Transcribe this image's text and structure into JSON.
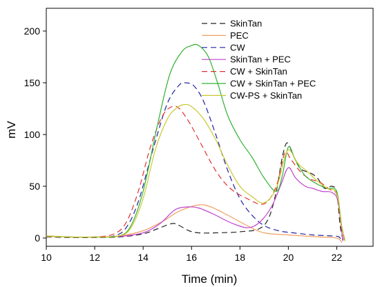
{
  "chart_data": {
    "type": "line",
    "title": "",
    "xlabel": "Time (min)",
    "ylabel": "mV",
    "xlim": [
      10,
      23.5
    ],
    "ylim": [
      -8,
      222
    ],
    "xticks": [
      10,
      12,
      14,
      16,
      18,
      20,
      22
    ],
    "yticks": [
      0,
      50,
      100,
      150,
      200
    ],
    "grid": false,
    "legend_position": "top-right",
    "series": [
      {
        "name": "SkinTan",
        "color": "#222222",
        "dash": "dashed",
        "points": [
          [
            10,
            1
          ],
          [
            11,
            0.5
          ],
          [
            12,
            0.5
          ],
          [
            13,
            1
          ],
          [
            14,
            4
          ],
          [
            14.6,
            9
          ],
          [
            15.2,
            14
          ],
          [
            15.5,
            12
          ],
          [
            15.9,
            7
          ],
          [
            16.3,
            5
          ],
          [
            17,
            5
          ],
          [
            18,
            6
          ],
          [
            18.8,
            9
          ],
          [
            19.2,
            20
          ],
          [
            19.5,
            45
          ],
          [
            19.75,
            78
          ],
          [
            19.95,
            92
          ],
          [
            20.2,
            80
          ],
          [
            20.5,
            67
          ],
          [
            20.9,
            63
          ],
          [
            21.2,
            58
          ],
          [
            21.5,
            48
          ],
          [
            21.8,
            50
          ],
          [
            22,
            44
          ],
          [
            22.15,
            10
          ],
          [
            22.3,
            -5
          ]
        ]
      },
      {
        "name": "PEC",
        "color": "#f0a060",
        "dash": "solid",
        "points": [
          [
            10,
            1.5
          ],
          [
            11,
            1
          ],
          [
            12,
            1
          ],
          [
            13,
            2
          ],
          [
            14,
            7
          ],
          [
            14.8,
            16
          ],
          [
            15.5,
            26
          ],
          [
            16.3,
            32
          ],
          [
            16.8,
            30
          ],
          [
            17.5,
            22
          ],
          [
            18.3,
            12
          ],
          [
            19,
            5
          ],
          [
            20,
            3
          ],
          [
            20.6,
            2
          ],
          [
            21.3,
            1
          ],
          [
            22,
            0
          ],
          [
            22.2,
            -4
          ]
        ]
      },
      {
        "name": "CW",
        "color": "#2020a0",
        "dash": "dashed",
        "points": [
          [
            10,
            2
          ],
          [
            11,
            1
          ],
          [
            12,
            1
          ],
          [
            12.8,
            2
          ],
          [
            13.3,
            10
          ],
          [
            13.8,
            35
          ],
          [
            14.4,
            85
          ],
          [
            15,
            130
          ],
          [
            15.5,
            148
          ],
          [
            15.75,
            150
          ],
          [
            16.1,
            147
          ],
          [
            16.5,
            132
          ],
          [
            17,
            100
          ],
          [
            17.5,
            65
          ],
          [
            18,
            38
          ],
          [
            18.5,
            22
          ],
          [
            19,
            12
          ],
          [
            19.6,
            7
          ],
          [
            20.2,
            5
          ],
          [
            21,
            3
          ],
          [
            21.8,
            2
          ],
          [
            22.1,
            1
          ],
          [
            22.2,
            -4
          ]
        ]
      },
      {
        "name": "SkinTan + PEC",
        "color": "#c040d0",
        "dash": "solid",
        "points": [
          [
            10,
            2
          ],
          [
            11,
            1
          ],
          [
            12,
            1
          ],
          [
            13,
            1.5
          ],
          [
            14,
            5
          ],
          [
            14.7,
            14
          ],
          [
            15.3,
            27
          ],
          [
            15.8,
            30
          ],
          [
            16.3,
            29
          ],
          [
            17,
            22
          ],
          [
            17.6,
            15
          ],
          [
            18.3,
            10
          ],
          [
            18.8,
            15
          ],
          [
            19.3,
            30
          ],
          [
            19.7,
            52
          ],
          [
            20,
            68
          ],
          [
            20.3,
            58
          ],
          [
            20.7,
            50
          ],
          [
            21,
            48
          ],
          [
            21.4,
            45
          ],
          [
            21.8,
            44
          ],
          [
            22.05,
            35
          ],
          [
            22.25,
            -3
          ]
        ]
      },
      {
        "name": "CW + SkinTan",
        "color": "#e03030",
        "dash": "dashed",
        "points": [
          [
            10,
            2
          ],
          [
            11,
            1
          ],
          [
            12,
            1
          ],
          [
            12.8,
            4
          ],
          [
            13.3,
            15
          ],
          [
            13.8,
            45
          ],
          [
            14.3,
            88
          ],
          [
            14.8,
            118
          ],
          [
            15.2,
            127
          ],
          [
            15.5,
            125
          ],
          [
            15.9,
            112
          ],
          [
            16.3,
            95
          ],
          [
            17,
            65
          ],
          [
            17.6,
            48
          ],
          [
            18.3,
            38
          ],
          [
            19,
            33
          ],
          [
            19.5,
            50
          ],
          [
            19.85,
            82
          ],
          [
            20.1,
            76
          ],
          [
            20.5,
            64
          ],
          [
            20.9,
            57
          ],
          [
            21.3,
            54
          ],
          [
            21.7,
            47
          ],
          [
            22,
            42
          ],
          [
            22.2,
            10
          ],
          [
            22.35,
            -4
          ]
        ]
      },
      {
        "name": "CW + SkinTan + PEC",
        "color": "#30b030",
        "dash": "solid",
        "points": [
          [
            10,
            2
          ],
          [
            11,
            1
          ],
          [
            12,
            1
          ],
          [
            13,
            2
          ],
          [
            13.5,
            12
          ],
          [
            14,
            45
          ],
          [
            14.6,
            110
          ],
          [
            15.1,
            158
          ],
          [
            15.6,
            180
          ],
          [
            16,
            186
          ],
          [
            16.3,
            186
          ],
          [
            16.7,
            175
          ],
          [
            17.1,
            148
          ],
          [
            17.5,
            118
          ],
          [
            18,
            95
          ],
          [
            18.5,
            78
          ],
          [
            19,
            58
          ],
          [
            19.5,
            45
          ],
          [
            19.75,
            60
          ],
          [
            20,
            88
          ],
          [
            20.3,
            75
          ],
          [
            20.7,
            60
          ],
          [
            21.2,
            52
          ],
          [
            21.6,
            48
          ],
          [
            22,
            45
          ],
          [
            22.2,
            12
          ],
          [
            22.35,
            -3
          ]
        ]
      },
      {
        "name": "CW-PS + SkinTan",
        "color": "#c8c830",
        "dash": "solid",
        "points": [
          [
            10,
            2
          ],
          [
            11,
            1
          ],
          [
            12,
            1
          ],
          [
            13,
            2
          ],
          [
            13.5,
            10
          ],
          [
            14,
            38
          ],
          [
            14.5,
            85
          ],
          [
            15,
            115
          ],
          [
            15.4,
            126
          ],
          [
            15.7,
            129
          ],
          [
            16,
            127
          ],
          [
            16.5,
            115
          ],
          [
            17,
            95
          ],
          [
            17.5,
            70
          ],
          [
            18,
            50
          ],
          [
            18.5,
            40
          ],
          [
            19,
            34
          ],
          [
            19.5,
            48
          ],
          [
            19.85,
            78
          ],
          [
            20.05,
            85
          ],
          [
            20.4,
            72
          ],
          [
            20.8,
            64
          ],
          [
            21.2,
            55
          ],
          [
            21.6,
            48
          ],
          [
            22,
            43
          ],
          [
            22.2,
            12
          ],
          [
            22.35,
            -3
          ]
        ]
      }
    ]
  }
}
